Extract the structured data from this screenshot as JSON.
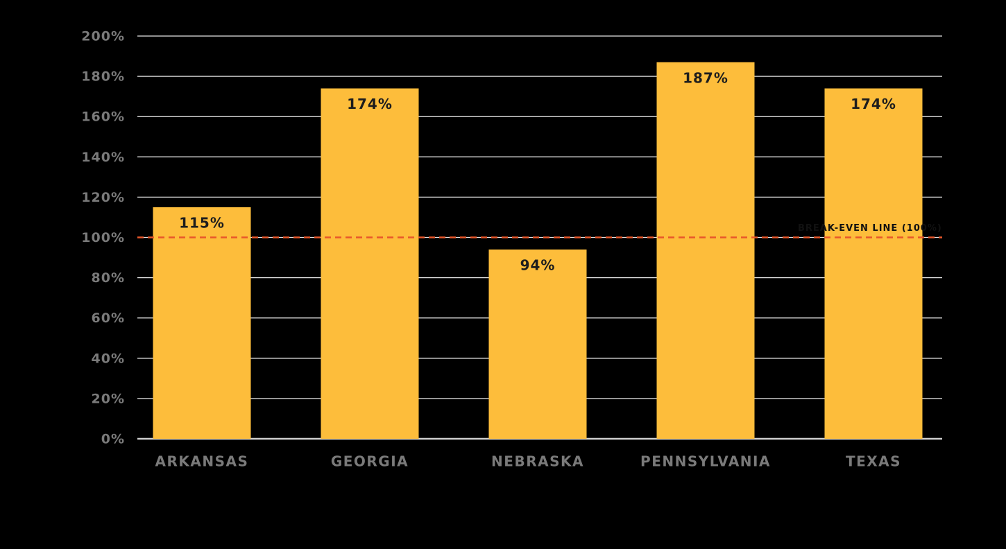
{
  "chart_data": {
    "type": "bar",
    "categories": [
      "ARKANSAS",
      "GEORGIA",
      "NEBRASKA",
      "PENNSYLVANIA",
      "TEXAS"
    ],
    "values": [
      115,
      174,
      94,
      187,
      174
    ],
    "value_labels": [
      "115%",
      "174%",
      "94%",
      "187%",
      "174%"
    ],
    "color": "#fdbd3b",
    "ylim": [
      0,
      200
    ],
    "yticks": [
      {
        "value": 0,
        "label": "0%"
      },
      {
        "value": 20,
        "label": "20%"
      },
      {
        "value": 40,
        "label": "40%"
      },
      {
        "value": 60,
        "label": "60%"
      },
      {
        "value": 80,
        "label": "80%"
      },
      {
        "value": 100,
        "label": "100%"
      },
      {
        "value": 120,
        "label": "120%"
      },
      {
        "value": 140,
        "label": "140%"
      },
      {
        "value": 160,
        "label": "160%"
      },
      {
        "value": 180,
        "label": "180%"
      },
      {
        "value": 200,
        "label": "200%"
      }
    ],
    "grid": true,
    "reference_line": {
      "value": 100,
      "label": "BREAK-EVEN LINE (100%)",
      "color": "#e8572a"
    }
  }
}
